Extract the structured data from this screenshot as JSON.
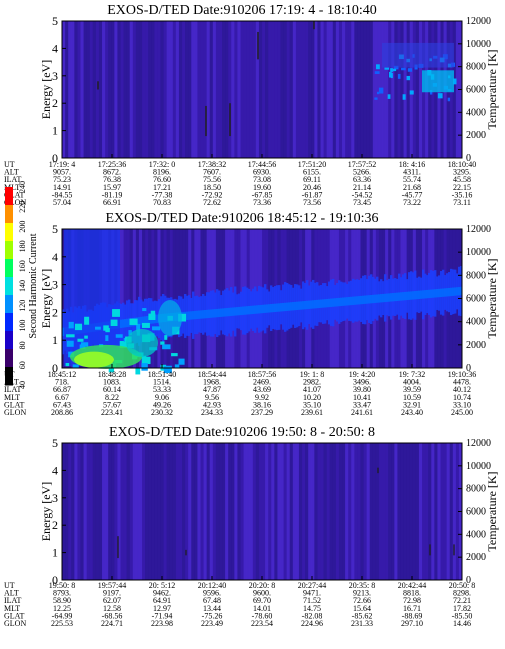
{
  "chart_data": [
    {
      "type": "heatmap",
      "title": "EXOS-D/TED  Date:910206  17:19: 4 - 18:10:40",
      "ylabel": "Energy [eV]",
      "ylabel_right": "Temperature [K]",
      "ylim": [
        0,
        5
      ],
      "yticks": [
        0,
        1,
        2,
        3,
        4,
        5
      ],
      "y2lim": [
        0,
        12000
      ],
      "y2ticks": [
        0,
        2000,
        4000,
        6000,
        8000,
        10000,
        12000
      ],
      "row_labels": [
        "UT",
        "ALT",
        "ILAT",
        "MLT",
        "GLAT",
        "GLON"
      ],
      "columns": [
        [
          "17:19: 4",
          "9057.",
          "75.23",
          "14.91",
          "-84.55",
          "57.04"
        ],
        [
          "17:25:36",
          "8672.",
          "76.38",
          "15.97",
          "-81.19",
          "66.91"
        ],
        [
          "17:32: 0",
          "8196.",
          "76.60",
          "17.21",
          "-77.38",
          "70.83"
        ],
        [
          "17:38:32",
          "7607.",
          "75.56",
          "18.50",
          "-72.92",
          "72.62"
        ],
        [
          "17:44:56",
          "6930.",
          "73.08",
          "19.60",
          "-67.85",
          "73.36"
        ],
        [
          "17:51:20",
          "6155.",
          "69.11",
          "20.46",
          "-61.87",
          "73.56"
        ],
        [
          "17:57:52",
          "5266.",
          "63.36",
          "21.14",
          "-54.52",
          "73.45"
        ],
        [
          "18: 4:16",
          "4311.",
          "55.74",
          "21.68",
          "-45.77",
          "73.22"
        ],
        [
          "18:10:40",
          "3295.",
          "45.58",
          "22.15",
          "-35.16",
          "73.11"
        ]
      ]
    },
    {
      "type": "heatmap",
      "title": "EXOS-D/TED  Date:910206  18:45:12 - 19:10:36",
      "ylabel": "Energy [eV]",
      "ylabel_right": "Temperature [K]",
      "ylim": [
        0,
        5
      ],
      "yticks": [
        0,
        1,
        2,
        3,
        4,
        5
      ],
      "y2lim": [
        0,
        12000
      ],
      "y2ticks": [
        0,
        2000,
        4000,
        6000,
        8000,
        10000,
        12000
      ],
      "row_labels": [
        "UT",
        "ALT",
        "ILAT",
        "MLT",
        "GLAT",
        "GLON"
      ],
      "columns": [
        [
          "18:45:12",
          "718.",
          "66.87",
          "6.67",
          "67.43",
          "208.86"
        ],
        [
          "18:48:28",
          "1083.",
          "60.14",
          "8.22",
          "57.67",
          "223.41"
        ],
        [
          "18:51:40",
          "1514.",
          "53.33",
          "9.06",
          "49.26",
          "230.32"
        ],
        [
          "18:54:44",
          "1968.",
          "47.87",
          "9.56",
          "42.93",
          "234.33"
        ],
        [
          "18:57:56",
          "2469.",
          "43.69",
          "9.92",
          "38.16",
          "237.29"
        ],
        [
          "19: 1: 8",
          "2982.",
          "41.07",
          "10.20",
          "35.10",
          "239.61"
        ],
        [
          "19: 4:20",
          "3496.",
          "39.80",
          "10.41",
          "33.47",
          "241.61"
        ],
        [
          "19: 7:32",
          "4004.",
          "39.59",
          "10.59",
          "32.91",
          "243.40"
        ],
        [
          "19:10:36",
          "4478.",
          "40.12",
          "10.74",
          "33.10",
          "245.00"
        ]
      ],
      "colorbar": {
        "label": "Second Harmonic Current",
        "ticks": [
          40,
          60,
          80,
          100,
          120,
          140,
          160,
          180,
          200,
          220,
          240
        ],
        "colors": [
          "#000000",
          "#3a006a",
          "#1a00c8",
          "#0028ff",
          "#0090ff",
          "#00e0e0",
          "#00ff60",
          "#a0ff00",
          "#ffff00",
          "#ff9000",
          "#ff0000"
        ]
      }
    },
    {
      "type": "heatmap",
      "title": "EXOS-D/TED  Date:910206  19:50: 8 - 20:50: 8",
      "ylabel": "Energy [eV]",
      "ylabel_right": "Temperature [K]",
      "ylim": [
        0,
        5
      ],
      "yticks": [
        0,
        1,
        2,
        3,
        4,
        5
      ],
      "y2lim": [
        0,
        12000
      ],
      "y2ticks": [
        0,
        2000,
        4000,
        6000,
        8000,
        10000,
        12000
      ],
      "row_labels": [
        "UT",
        "ALT",
        "ILAT",
        "MLT",
        "GLAT",
        "GLON"
      ],
      "columns": [
        [
          "19:50: 8",
          "8793.",
          "58.90",
          "12.25",
          "-64.99",
          "225.53"
        ],
        [
          "19:57:44",
          "9197.",
          "62.07",
          "12.58",
          "-68.56",
          "224.71"
        ],
        [
          "20: 5:12",
          "9462.",
          "64.91",
          "12.97",
          "-71.94",
          "223.98"
        ],
        [
          "20:12:40",
          "9596.",
          "67.48",
          "13.44",
          "-75.26",
          "223.49"
        ],
        [
          "20:20: 8",
          "9600.",
          "69.70",
          "14.01",
          "-78.60",
          "223.54"
        ],
        [
          "20:27:44",
          "9471.",
          "71.52",
          "14.75",
          "-82.08",
          "224.96"
        ],
        [
          "20:35: 8",
          "9213.",
          "72.66",
          "15.64",
          "-85.62",
          "231.33"
        ],
        [
          "20:42:44",
          "8818.",
          "72.98",
          "16.71",
          "-88.69",
          "297.10"
        ],
        [
          "20:50: 8",
          "8298.",
          "72.21",
          "17.82",
          "-85.50",
          "14.46"
        ]
      ]
    }
  ]
}
